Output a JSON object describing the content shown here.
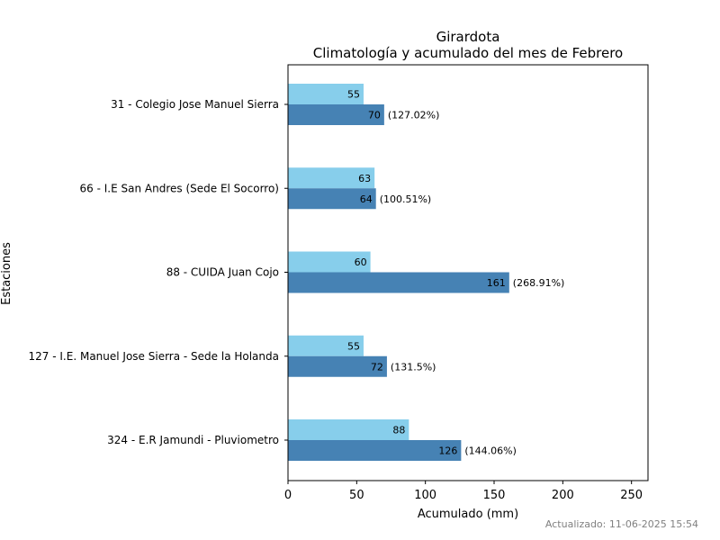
{
  "chart_data": {
    "type": "bar",
    "orientation": "horizontal",
    "title": "Girardota",
    "subtitle": "Climatología y acumulado del mes de Febrero",
    "xlabel": "Acumulado (mm)",
    "ylabel": "Estaciones",
    "xlim": [
      0,
      262
    ],
    "xticks": [
      0,
      50,
      100,
      150,
      200,
      250
    ],
    "grid": false,
    "categories": [
      "31 - Colegio Jose Manuel Sierra",
      "66 - I.E San Andres (Sede El Socorro)",
      "88 - CUIDA Juan Cojo",
      "127 - I.E. Manuel Jose Sierra - Sede la Holanda",
      "324 - E.R Jamundi - Pluviometro"
    ],
    "series": [
      {
        "values": [
          55,
          63,
          60,
          55,
          88
        ],
        "labels": [
          "55",
          "63",
          "60",
          "55",
          "88"
        ],
        "color": "#87ceeb"
      },
      {
        "values": [
          70,
          64,
          161,
          72,
          126
        ],
        "labels": [
          "70",
          "64",
          "161",
          "72",
          "126"
        ],
        "color": "#4682b4"
      }
    ],
    "percent_labels": [
      "(127.02%)",
      "(100.51%)",
      "(268.91%)",
      "(131.5%)",
      "(144.06%)"
    ]
  },
  "footer": {
    "updated": "Actualizado: 11-06-2025 15:54"
  }
}
